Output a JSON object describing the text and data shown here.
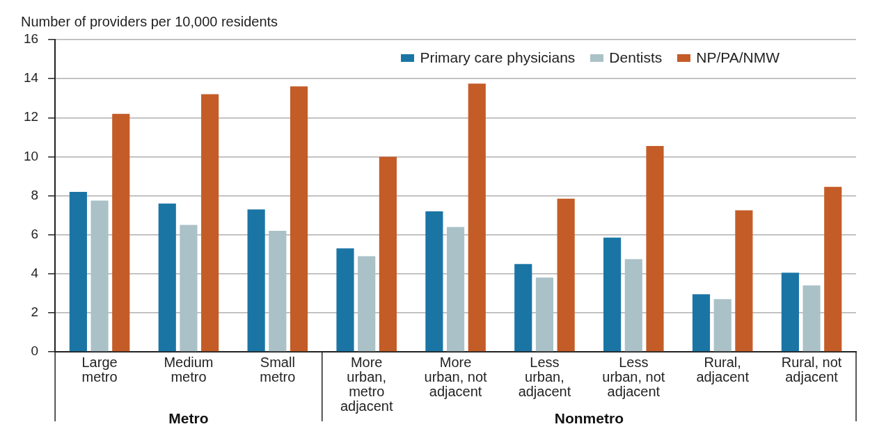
{
  "chart_data": {
    "type": "bar",
    "ylabel": "Number of providers per 10,000 residents",
    "categories": [
      "Large metro",
      "Medium metro",
      "Small metro",
      "More urban, metro adjacent",
      "More urban, not adjacent",
      "Less urban, adjacent",
      "Less urban, not adjacent",
      "Rural, adjacent",
      "Rural, not adjacent"
    ],
    "series": [
      {
        "name": "Primary care physicians",
        "color": "#1a75a5",
        "values": [
          8.2,
          7.6,
          7.3,
          5.3,
          7.2,
          4.5,
          5.85,
          2.95,
          4.05
        ]
      },
      {
        "name": "Dentists",
        "color": "#abc1c8",
        "values": [
          7.75,
          6.5,
          6.2,
          4.9,
          6.4,
          3.8,
          4.75,
          2.7,
          3.4
        ]
      },
      {
        "name": "NP/PA/NMW",
        "color": "#c45c28",
        "values": [
          12.2,
          13.2,
          13.6,
          10.0,
          13.75,
          7.85,
          10.55,
          7.25,
          8.45
        ]
      }
    ],
    "annotations": [
      "Metro",
      "Nonmetro"
    ],
    "ylim": [
      0,
      16
    ],
    "yticks": [
      0,
      2,
      4,
      6,
      8,
      10,
      12,
      14,
      16
    ],
    "grid": "y",
    "legend": "top right"
  }
}
